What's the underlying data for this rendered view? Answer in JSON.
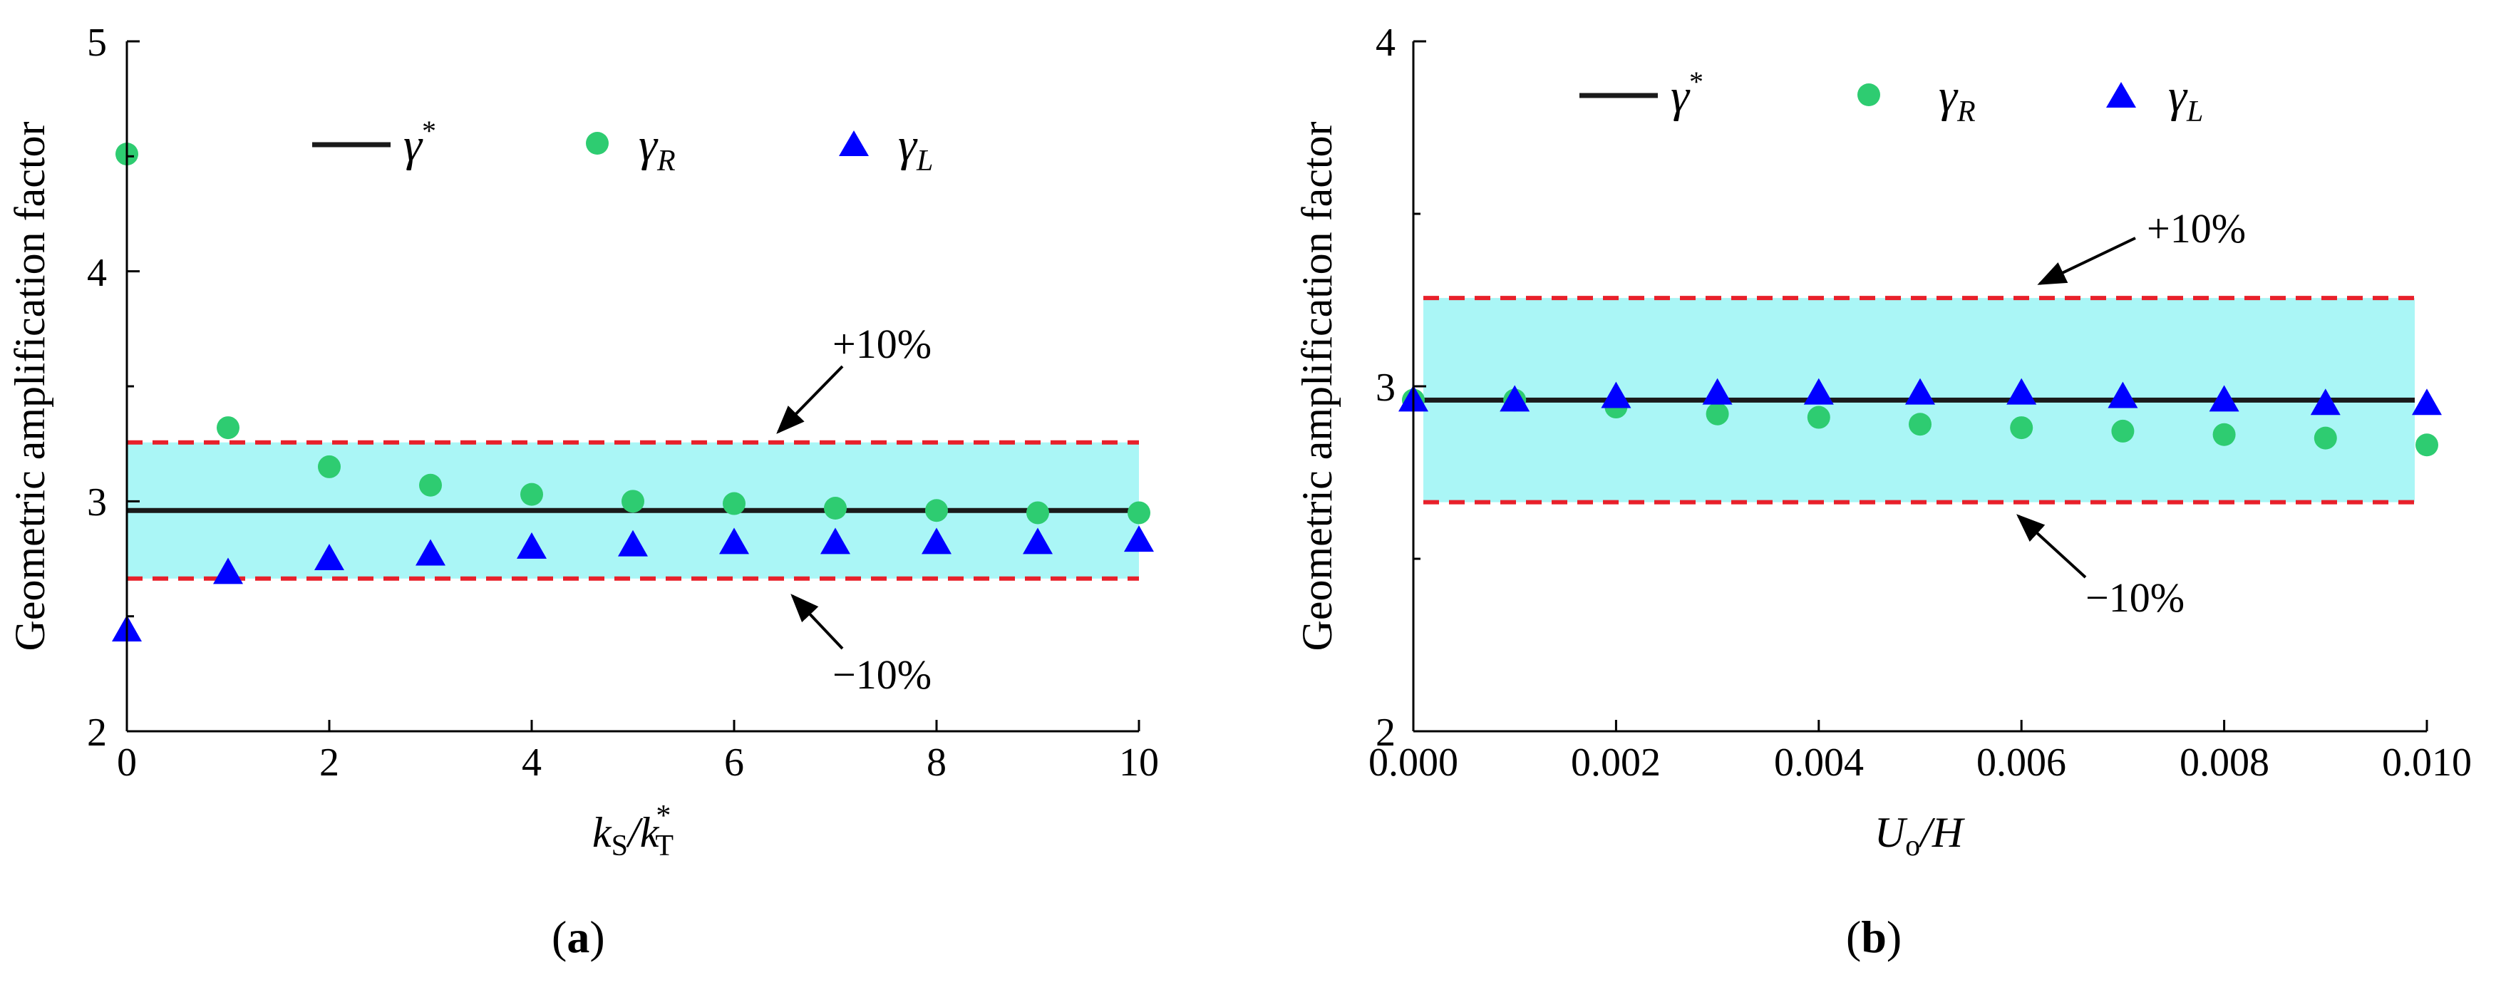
{
  "chart_data": [
    {
      "type": "scatter",
      "panel_label": "a",
      "ylabel": "Geometric amplification factor",
      "xlabel": {
        "base": "k",
        "sub1": "S",
        "sep": "/",
        "base2": "k",
        "sub2": "T",
        "sup2": "*"
      },
      "xlim": [
        0,
        10
      ],
      "ylim": [
        2,
        5
      ],
      "xticks": [
        "0",
        "2",
        "4",
        "6",
        "8",
        "10"
      ],
      "yticks": [
        "2",
        "3",
        "4",
        "5"
      ],
      "reference_line": 2.96,
      "band": {
        "upper": 3.256,
        "lower": 2.664,
        "upper_label": "+10%",
        "lower_label": "−10%"
      },
      "x": [
        0,
        1,
        2,
        3,
        4,
        5,
        6,
        7,
        8,
        9,
        10
      ],
      "series": [
        {
          "name": "γR",
          "marker": "circle",
          "color": "#2ecc71",
          "values": [
            4.51,
            3.32,
            3.15,
            3.07,
            3.03,
            3.0,
            2.99,
            2.97,
            2.96,
            2.95,
            2.95
          ]
        },
        {
          "name": "γL",
          "marker": "triangle",
          "color": "#0000ff",
          "values": [
            2.44,
            2.69,
            2.75,
            2.77,
            2.8,
            2.81,
            2.82,
            2.82,
            2.82,
            2.82,
            2.83
          ]
        }
      ],
      "legend": {
        "line": "γ",
        "line_sup": "*",
        "r": "γ",
        "r_sub": "R",
        "l": "γ",
        "l_sub": "L"
      }
    },
    {
      "type": "scatter",
      "panel_label": "b",
      "ylabel": "Geometric amplification factor",
      "xlabel": {
        "base": "U",
        "sub1": "o",
        "sep": "/",
        "base2": "H"
      },
      "xlim": [
        0,
        0.01
      ],
      "ylim": [
        2,
        4
      ],
      "xticks": [
        "0.000",
        "0.002",
        "0.004",
        "0.006",
        "0.008",
        "0.010"
      ],
      "yticks": [
        "2",
        "3",
        "4"
      ],
      "reference_line": 2.96,
      "band": {
        "upper": 3.256,
        "lower": 2.664,
        "upper_label": "+10%",
        "lower_label": "−10%"
      },
      "x": [
        0,
        0.001,
        0.002,
        0.003,
        0.004,
        0.005,
        0.006,
        0.007,
        0.008,
        0.009,
        0.01
      ],
      "series": [
        {
          "name": "γR",
          "marker": "circle",
          "color": "#2ecc71",
          "values": [
            2.96,
            2.96,
            2.94,
            2.92,
            2.91,
            2.89,
            2.88,
            2.87,
            2.86,
            2.85,
            2.83
          ]
        },
        {
          "name": "γL",
          "marker": "triangle",
          "color": "#0000ff",
          "values": [
            2.96,
            2.96,
            2.97,
            2.98,
            2.98,
            2.98,
            2.98,
            2.97,
            2.96,
            2.95,
            2.95
          ]
        }
      ],
      "legend": {
        "line": "γ",
        "line_sup": "*",
        "r": "γ",
        "r_sub": "R",
        "l": "γ",
        "l_sub": "L"
      }
    }
  ],
  "colors": {
    "line": "#1a1a1a",
    "band": "#aaf6f6",
    "dash": "#e8202a",
    "circle": "#2ecc71",
    "triangle": "#0000ff"
  }
}
